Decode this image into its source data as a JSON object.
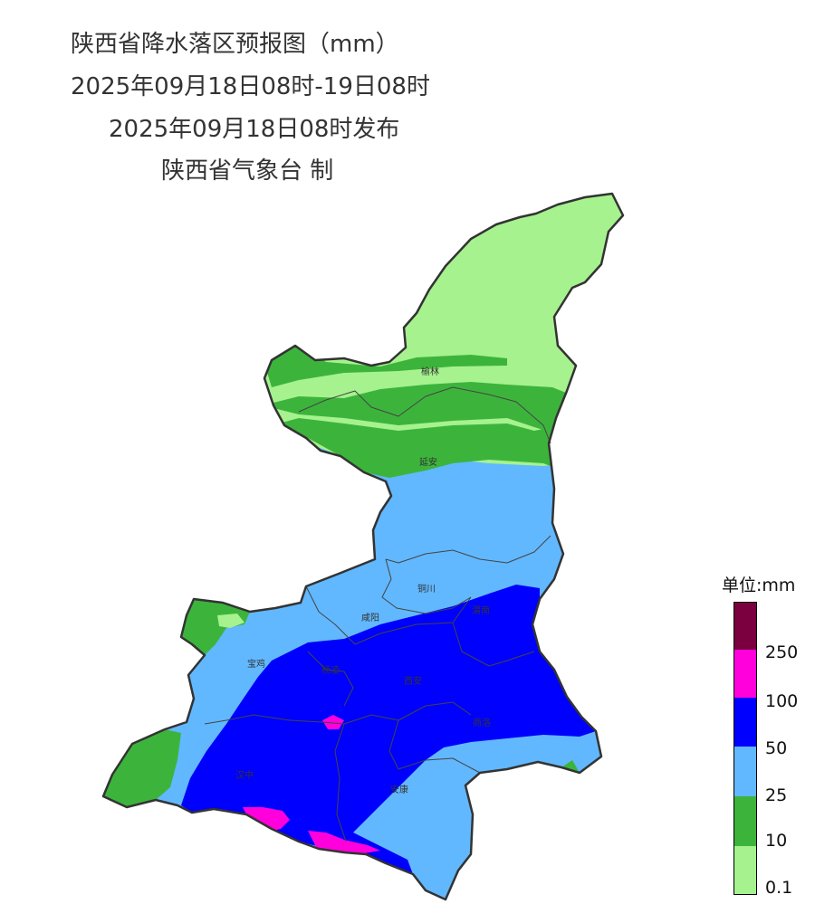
{
  "title": {
    "line1": "陕西省降水落区预报图（mm）",
    "line2": "2025年09月18日08时-19日08时",
    "line3": "2025年09月18日08时发布",
    "line4": "陕西省气象台 制"
  },
  "cities": [
    {
      "name": "榆林"
    },
    {
      "name": "延安"
    },
    {
      "name": "铜川"
    },
    {
      "name": "渭南"
    },
    {
      "name": "咸阳"
    },
    {
      "name": "宝鸡"
    },
    {
      "name": "杨凌"
    },
    {
      "name": "西安"
    },
    {
      "name": "商洛"
    },
    {
      "name": "汉中"
    },
    {
      "name": "安康"
    }
  ],
  "legend": {
    "title": "单位:mm",
    "levels": [
      {
        "label": "",
        "color": "#7a0040"
      },
      {
        "label": "250",
        "color": "#ff00dc"
      },
      {
        "label": "100",
        "color": "#0000ff"
      },
      {
        "label": "50",
        "color": "#61b8ff"
      },
      {
        "label": "25",
        "color": "#3cb43c"
      },
      {
        "label": "10",
        "color": "#a6f28e"
      },
      {
        "label": "0.1",
        "color": ""
      }
    ]
  },
  "colors": {
    "light_green": "#a6f28e",
    "green": "#3cb43c",
    "light_blue": "#61b8ff",
    "blue": "#0000ff",
    "magenta": "#ff00dc",
    "dark_red": "#7a0040",
    "border": "#333333"
  }
}
